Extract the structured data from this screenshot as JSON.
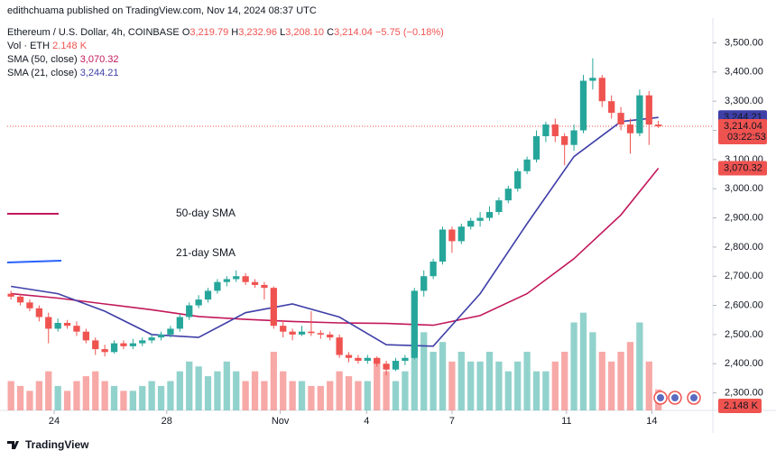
{
  "chart_data": {
    "type": "candlestick",
    "publisher": "edithchuama published on TradingView.com, Nov 14, 2024 08:37 UTC",
    "symbol": "Ethereum / U.S. Dollar, 4h, COINBASE",
    "legend": {
      "open": "O",
      "open_text": "3,219.79",
      "high": "H",
      "high_text": "3,232.96",
      "low": "L",
      "low_text": "3,208.10",
      "close": "C",
      "close_text": "3,214.04",
      "change": "−5.75 (−0.18%)"
    },
    "indicators": [
      {
        "name": "Vol · ETH",
        "value": "2.148 K",
        "color": "#ef5350"
      },
      {
        "name": "SMA (50, close)",
        "value": "3,070.32",
        "color": "#c2185b"
      },
      {
        "name": "SMA (21, close)",
        "value": "3,244.21",
        "color": "#3f3fa8"
      }
    ],
    "annotations": [
      {
        "text": "50-day SMA",
        "color": "#c2185b"
      },
      {
        "text": "21-day SMA",
        "color": "#3f3fa8"
      }
    ],
    "up_color": "#26a69a",
    "down_color": "#ef5350",
    "xlim": [
      -0.4,
      74.8
    ],
    "xticks": [
      {
        "value": 4.6,
        "label": "24"
      },
      {
        "value": 16.6,
        "label": "28"
      },
      {
        "value": 28.7,
        "label": "Nov"
      },
      {
        "value": 37.9,
        "label": "4"
      },
      {
        "value": 47,
        "label": "7"
      },
      {
        "value": 59.2,
        "label": "11"
      },
      {
        "value": 68.3,
        "label": "14"
      }
    ],
    "ylim": [
      2240,
      3585
    ],
    "yticks": [
      {
        "value": 2300,
        "label": "2,300.00"
      },
      {
        "value": 2400,
        "label": "2,400.00"
      },
      {
        "value": 2500,
        "label": "2,500.00"
      },
      {
        "value": 2600,
        "label": "2,600.00"
      },
      {
        "value": 2700,
        "label": "2,700.00"
      },
      {
        "value": 2800,
        "label": "2,800.00"
      },
      {
        "value": 2900,
        "label": "2,900.00"
      },
      {
        "value": 3000,
        "label": "3,000.00"
      },
      {
        "value": 3100,
        "label": "3,100.00"
      },
      {
        "value": 3200,
        "label": "3,200.00"
      },
      {
        "value": 3300,
        "label": "3,300.00"
      },
      {
        "value": 3400,
        "label": "3,400.00"
      },
      {
        "value": 3500,
        "label": "3,500.00"
      }
    ],
    "ohlc": [
      [
        2640,
        2650,
        2620,
        2630
      ],
      [
        2630,
        2640,
        2600,
        2610
      ],
      [
        2610,
        2620,
        2580,
        2590
      ],
      [
        2590,
        2600,
        2545,
        2560
      ],
      [
        2560,
        2575,
        2470,
        2520
      ],
      [
        2520,
        2555,
        2510,
        2540
      ],
      [
        2540,
        2550,
        2520,
        2530
      ],
      [
        2530,
        2545,
        2495,
        2510
      ],
      [
        2510,
        2520,
        2470,
        2480
      ],
      [
        2480,
        2490,
        2430,
        2450
      ],
      [
        2450,
        2465,
        2425,
        2440
      ],
      [
        2440,
        2480,
        2435,
        2470
      ],
      [
        2470,
        2480,
        2450,
        2460
      ],
      [
        2460,
        2485,
        2450,
        2470
      ],
      [
        2470,
        2490,
        2460,
        2480
      ],
      [
        2480,
        2500,
        2470,
        2490
      ],
      [
        2490,
        2510,
        2480,
        2500
      ],
      [
        2500,
        2530,
        2490,
        2520
      ],
      [
        2520,
        2570,
        2510,
        2560
      ],
      [
        2560,
        2610,
        2550,
        2600
      ],
      [
        2600,
        2635,
        2590,
        2620
      ],
      [
        2620,
        2660,
        2610,
        2650
      ],
      [
        2650,
        2690,
        2640,
        2680
      ],
      [
        2680,
        2700,
        2665,
        2690
      ],
      [
        2690,
        2720,
        2680,
        2700
      ],
      [
        2700,
        2710,
        2670,
        2680
      ],
      [
        2680,
        2690,
        2660,
        2670
      ],
      [
        2670,
        2680,
        2620,
        2660
      ],
      [
        2660,
        2665,
        2520,
        2530
      ],
      [
        2530,
        2550,
        2490,
        2510
      ],
      [
        2510,
        2520,
        2480,
        2500
      ],
      [
        2500,
        2530,
        2495,
        2510
      ],
      [
        2510,
        2580,
        2495,
        2505
      ],
      [
        2505,
        2515,
        2485,
        2500
      ],
      [
        2500,
        2510,
        2480,
        2490
      ],
      [
        2490,
        2500,
        2420,
        2430
      ],
      [
        2430,
        2440,
        2405,
        2420
      ],
      [
        2420,
        2430,
        2400,
        2410
      ],
      [
        2410,
        2430,
        2400,
        2420
      ],
      [
        2420,
        2425,
        2390,
        2400
      ],
      [
        2400,
        2410,
        2360,
        2380
      ],
      [
        2380,
        2420,
        2375,
        2410
      ],
      [
        2410,
        2430,
        2395,
        2420
      ],
      [
        2420,
        2660,
        2415,
        2650
      ],
      [
        2650,
        2720,
        2630,
        2700
      ],
      [
        2700,
        2760,
        2690,
        2750
      ],
      [
        2750,
        2870,
        2740,
        2860
      ],
      [
        2860,
        2870,
        2780,
        2820
      ],
      [
        2820,
        2880,
        2810,
        2870
      ],
      [
        2870,
        2900,
        2860,
        2890
      ],
      [
        2890,
        2920,
        2870,
        2900
      ],
      [
        2900,
        2940,
        2890,
        2920
      ],
      [
        2920,
        2970,
        2910,
        2960
      ],
      [
        2960,
        3010,
        2950,
        3000
      ],
      [
        3000,
        3070,
        2990,
        3060
      ],
      [
        3060,
        3110,
        3050,
        3100
      ],
      [
        3100,
        3200,
        3090,
        3180
      ],
      [
        3180,
        3230,
        3160,
        3220
      ],
      [
        3220,
        3240,
        3160,
        3180
      ],
      [
        3180,
        3190,
        3080,
        3150
      ],
      [
        3150,
        3220,
        3130,
        3200
      ],
      [
        3200,
        3390,
        3190,
        3370
      ],
      [
        3370,
        3447,
        3340,
        3380
      ],
      [
        3380,
        3390,
        3280,
        3300
      ],
      [
        3300,
        3320,
        3240,
        3260
      ],
      [
        3260,
        3280,
        3200,
        3220
      ],
      [
        3220,
        3240,
        3120,
        3190
      ],
      [
        3190,
        3340,
        3180,
        3320
      ],
      [
        3320,
        3335,
        3150,
        3219.79
      ],
      [
        3219.79,
        3232.96,
        3208.1,
        3214.04
      ]
    ],
    "volume": [
      3,
      2.5,
      2,
      3,
      4,
      2.5,
      2,
      3,
      3.5,
      4,
      3,
      2.5,
      2,
      2,
      2.5,
      3,
      2.5,
      3,
      4,
      5,
      4.5,
      3.5,
      4,
      5,
      4,
      3,
      4,
      3,
      6,
      4,
      3,
      3,
      2.5,
      2.5,
      3,
      4,
      3.5,
      3,
      3,
      5,
      4,
      3,
      4,
      7,
      8,
      6,
      7,
      5,
      6,
      5,
      5,
      6,
      5,
      4,
      5,
      6,
      4,
      4,
      5,
      6,
      9,
      10,
      8,
      6,
      5,
      6,
      7,
      9,
      5,
      2.148
    ],
    "vol_lim": [
      0,
      12
    ],
    "sma": [
      {
        "name": "SMA 50",
        "color": "#c2185b",
        "x": [
          0,
          5,
          10,
          15,
          20,
          25,
          30,
          35,
          40,
          45,
          50,
          55,
          60,
          65,
          69
        ],
        "values": [
          2640,
          2625,
          2605,
          2585,
          2562,
          2552,
          2545,
          2540,
          2538,
          2532,
          2565,
          2640,
          2760,
          2910,
          3070.32
        ]
      },
      {
        "name": "SMA 21",
        "color": "#3f3fa8",
        "x": [
          0,
          5,
          10,
          15,
          20,
          25,
          30,
          35,
          40,
          45,
          50,
          55,
          60,
          65,
          69
        ],
        "values": [
          2665,
          2640,
          2580,
          2500,
          2490,
          2575,
          2605,
          2560,
          2465,
          2460,
          2640,
          2880,
          3110,
          3230,
          3244.21
        ]
      }
    ],
    "price_labels": [
      {
        "value": 3244.21,
        "text": "3,244.21",
        "color": "#3f3fa8"
      },
      {
        "value": 3214.04,
        "text": "3,214.04",
        "sub": "03:22:53",
        "color": "#ef5350"
      },
      {
        "value": 3070.32,
        "text": "3,070.32",
        "color": "#ef5350"
      }
    ],
    "volume_label": "2.148 K",
    "footer": "TradingView"
  }
}
